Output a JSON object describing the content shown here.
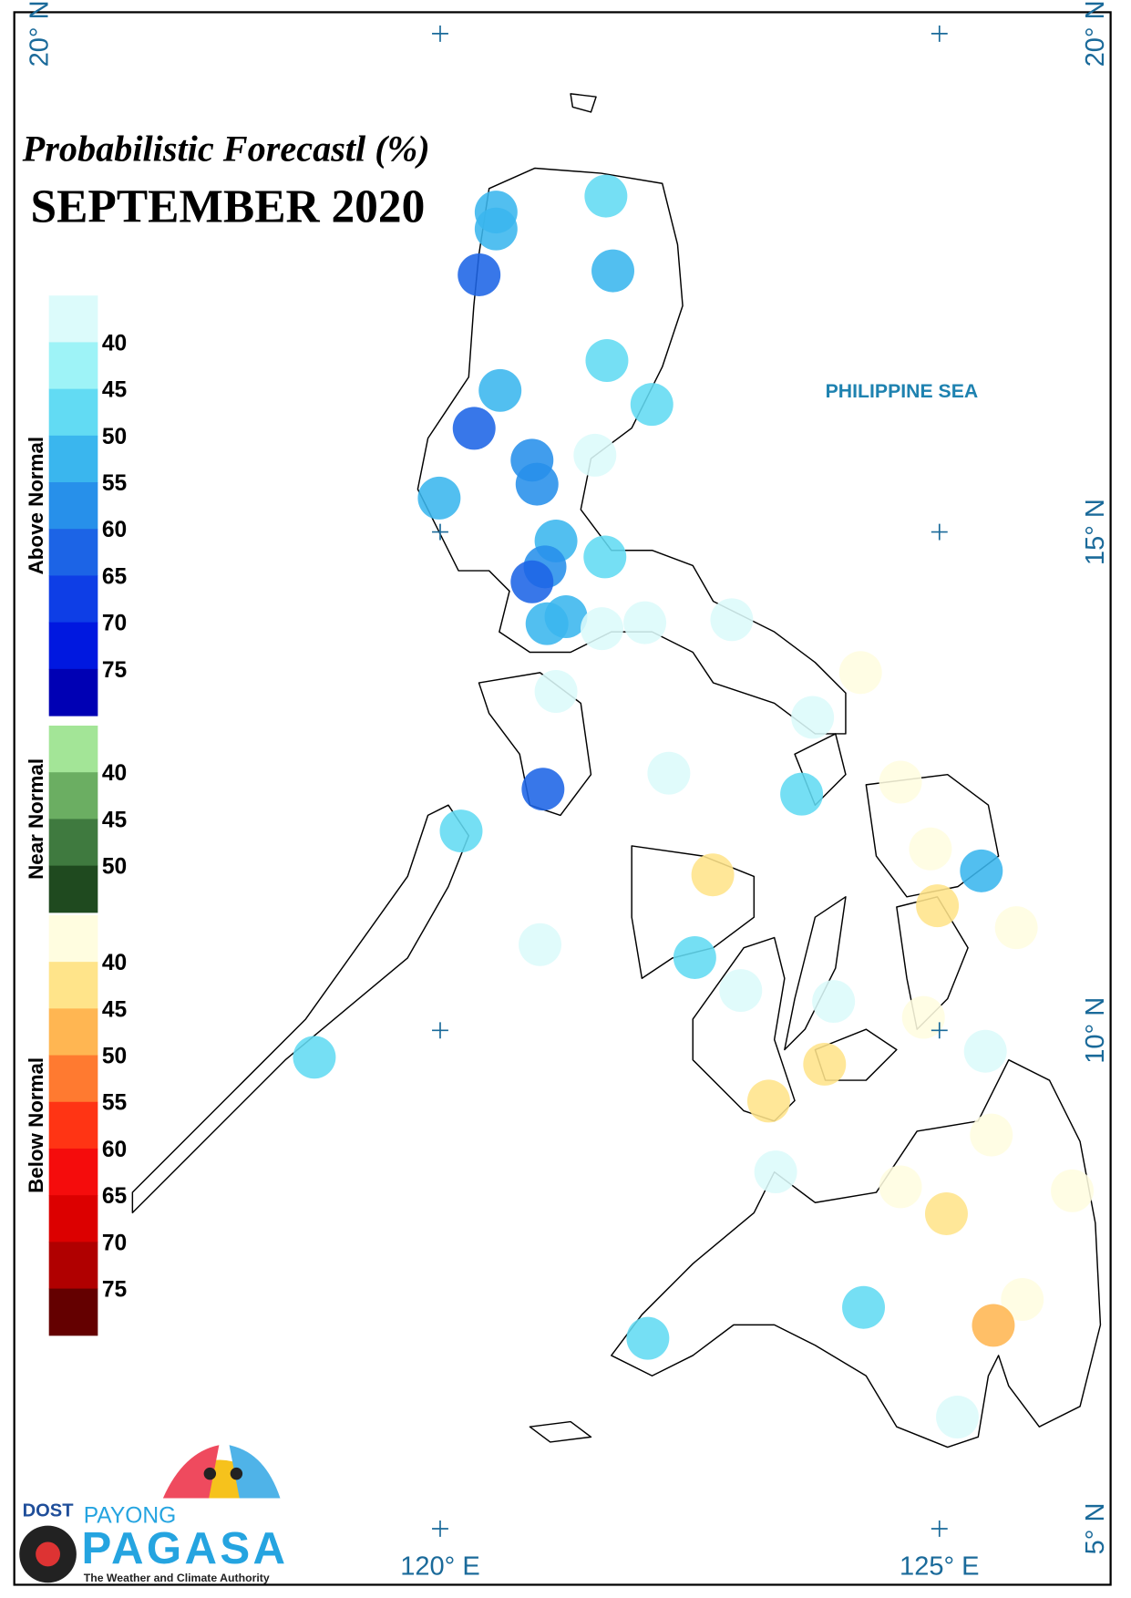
{
  "map": {
    "title": "Probabilistic Forecastl (%)",
    "subtitle": "SEPTEMBER 2020",
    "sea_label": "PHILIPPINE SEA",
    "lon_grid": [
      {
        "value": 120,
        "label": "120° E"
      },
      {
        "value": 125,
        "label": "125° E"
      }
    ],
    "lat_grid": [
      {
        "value": 20,
        "label": "20° N"
      },
      {
        "value": 15,
        "label": "15° N"
      },
      {
        "value": 10,
        "label": "10° N"
      },
      {
        "value": 5,
        "label": "5° N"
      }
    ],
    "legend": [
      {
        "name": "Above Normal",
        "colors": [
          "#dcfbfb",
          "#9ef3f7",
          "#62dbf3",
          "#3ab6ee",
          "#2790ea",
          "#1c64e6",
          "#0e3ee6",
          "#0018e0",
          "#0000b4"
        ],
        "ticks": [
          40,
          45,
          50,
          55,
          60,
          65,
          70,
          75
        ]
      },
      {
        "name": "Near Normal",
        "colors": [
          "#a3e597",
          "#6bae62",
          "#3f7a3f",
          "#1f4a1f"
        ],
        "ticks": [
          40,
          45,
          50
        ]
      },
      {
        "name": "Below Normal",
        "colors": [
          "#fffde0",
          "#ffe48a",
          "#ffb652",
          "#ff7a30",
          "#ff3414",
          "#f50c0c",
          "#dc0000",
          "#b00000",
          "#640000"
        ],
        "ticks": [
          40,
          45,
          50,
          55,
          60,
          65,
          70,
          75
        ]
      }
    ],
    "points": [
      {
        "lon": 120.56,
        "lat": 18.21,
        "color": "#3ab6ee"
      },
      {
        "lon": 120.56,
        "lat": 18.04,
        "color": "#3ab6ee"
      },
      {
        "lon": 120.39,
        "lat": 17.58,
        "color": "#1c64e6"
      },
      {
        "lon": 121.66,
        "lat": 18.37,
        "color": "#62dbf3"
      },
      {
        "lon": 121.73,
        "lat": 17.62,
        "color": "#3ab6ee"
      },
      {
        "lon": 121.67,
        "lat": 16.72,
        "color": "#62dbf3"
      },
      {
        "lon": 120.6,
        "lat": 16.42,
        "color": "#3ab6ee"
      },
      {
        "lon": 120.34,
        "lat": 16.04,
        "color": "#1c64e6"
      },
      {
        "lon": 122.12,
        "lat": 16.28,
        "color": "#62dbf3"
      },
      {
        "lon": 120.92,
        "lat": 15.72,
        "color": "#2790ea"
      },
      {
        "lon": 120.97,
        "lat": 15.48,
        "color": "#2790ea"
      },
      {
        "lon": 121.55,
        "lat": 15.77,
        "color": "#dcfbfb"
      },
      {
        "lon": 119.99,
        "lat": 15.34,
        "color": "#3ab6ee"
      },
      {
        "lon": 121.16,
        "lat": 14.91,
        "color": "#3ab6ee"
      },
      {
        "lon": 121.65,
        "lat": 14.75,
        "color": "#62dbf3"
      },
      {
        "lon": 121.05,
        "lat": 14.65,
        "color": "#2790ea"
      },
      {
        "lon": 120.92,
        "lat": 14.5,
        "color": "#1c64e6"
      },
      {
        "lon": 121.26,
        "lat": 14.15,
        "color": "#3ab6ee"
      },
      {
        "lon": 121.07,
        "lat": 14.08,
        "color": "#3ab6ee"
      },
      {
        "lon": 121.62,
        "lat": 14.03,
        "color": "#dcfbfb"
      },
      {
        "lon": 122.05,
        "lat": 14.09,
        "color": "#dcfbfb"
      },
      {
        "lon": 122.92,
        "lat": 14.12,
        "color": "#dcfbfb"
      },
      {
        "lon": 124.21,
        "lat": 13.59,
        "color": "#fffde0"
      },
      {
        "lon": 121.16,
        "lat": 13.4,
        "color": "#dcfbfb"
      },
      {
        "lon": 123.73,
        "lat": 13.14,
        "color": "#dcfbfb"
      },
      {
        "lon": 122.29,
        "lat": 12.58,
        "color": "#dcfbfb"
      },
      {
        "lon": 123.62,
        "lat": 12.37,
        "color": "#62dbf3"
      },
      {
        "lon": 121.03,
        "lat": 12.42,
        "color": "#1c64e6"
      },
      {
        "lon": 124.61,
        "lat": 12.49,
        "color": "#fffde0"
      },
      {
        "lon": 120.21,
        "lat": 12.0,
        "color": "#62dbf3"
      },
      {
        "lon": 124.91,
        "lat": 11.82,
        "color": "#fffde0"
      },
      {
        "lon": 125.42,
        "lat": 11.6,
        "color": "#3ab6ee"
      },
      {
        "lon": 122.73,
        "lat": 11.56,
        "color": "#ffe48a"
      },
      {
        "lon": 124.98,
        "lat": 11.25,
        "color": "#ffe48a"
      },
      {
        "lon": 125.77,
        "lat": 11.03,
        "color": "#fffde0"
      },
      {
        "lon": 121.0,
        "lat": 10.86,
        "color": "#dcfbfb"
      },
      {
        "lon": 122.55,
        "lat": 10.73,
        "color": "#62dbf3"
      },
      {
        "lon": 123.01,
        "lat": 10.4,
        "color": "#dcfbfb"
      },
      {
        "lon": 123.94,
        "lat": 10.29,
        "color": "#dcfbfb"
      },
      {
        "lon": 124.84,
        "lat": 10.13,
        "color": "#fffde0"
      },
      {
        "lon": 125.46,
        "lat": 9.79,
        "color": "#dcfbfb"
      },
      {
        "lon": 118.74,
        "lat": 9.73,
        "color": "#62dbf3"
      },
      {
        "lon": 123.85,
        "lat": 9.66,
        "color": "#ffe48a"
      },
      {
        "lon": 123.29,
        "lat": 9.29,
        "color": "#ffe48a"
      },
      {
        "lon": 125.52,
        "lat": 8.95,
        "color": "#fffde0"
      },
      {
        "lon": 123.36,
        "lat": 8.58,
        "color": "#dcfbfb"
      },
      {
        "lon": 124.61,
        "lat": 8.43,
        "color": "#fffde0"
      },
      {
        "lon": 126.33,
        "lat": 8.39,
        "color": "#fffde0"
      },
      {
        "lon": 125.07,
        "lat": 8.16,
        "color": "#ffe48a"
      },
      {
        "lon": 124.24,
        "lat": 7.22,
        "color": "#62dbf3"
      },
      {
        "lon": 125.83,
        "lat": 7.3,
        "color": "#fffde0"
      },
      {
        "lon": 125.54,
        "lat": 7.04,
        "color": "#ffb652"
      },
      {
        "lon": 122.08,
        "lat": 6.91,
        "color": "#62dbf3"
      },
      {
        "lon": 125.18,
        "lat": 6.12,
        "color": "#dcfbfb"
      }
    ],
    "logo": {
      "agency": "DOST",
      "line1": "PAYONG",
      "line2": "PAGASA",
      "tagline": "The Weather and Climate Authority"
    }
  }
}
